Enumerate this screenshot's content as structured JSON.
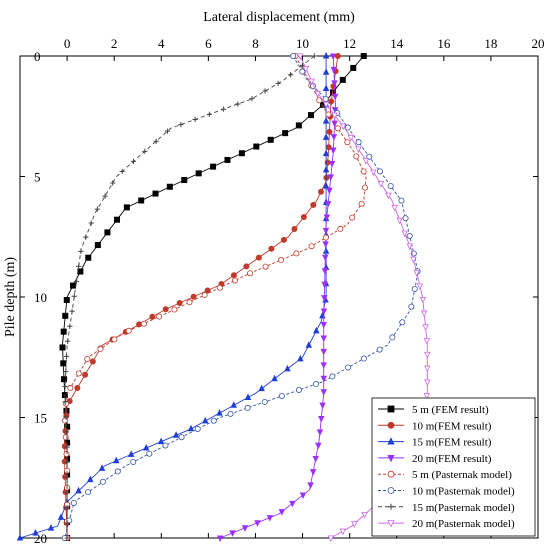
{
  "chart_data": {
    "type": "line",
    "xlabel": "Lateral displacement (mm)",
    "ylabel": "Pile depth (m)",
    "xlim": [
      -2,
      20
    ],
    "ylim": [
      0,
      20
    ],
    "x_axis_position": "top",
    "y_axis_inverted": true,
    "x_ticks": [
      0,
      2,
      4,
      6,
      8,
      10,
      12,
      14,
      16,
      18,
      20
    ],
    "y_ticks": [
      0,
      5,
      10,
      15,
      20
    ],
    "grid": false,
    "legend_position": "bottom-right",
    "series": [
      {
        "name": "5 m  (FEM result)",
        "color": "#000000",
        "marker": "square",
        "filled": true,
        "dash": "",
        "points": [
          [
            12.6,
            0
          ],
          [
            11.7,
            1
          ],
          [
            10.9,
            2
          ],
          [
            9.7,
            3
          ],
          [
            7.5,
            4
          ],
          [
            4.2,
            5.5
          ],
          [
            2.5,
            6.3
          ],
          [
            0.8,
            8.5
          ],
          [
            0,
            10
          ],
          [
            -0.2,
            12
          ],
          [
            -0.1,
            14
          ],
          [
            0,
            15
          ],
          [
            0,
            17
          ],
          [
            0,
            20
          ]
        ]
      },
      {
        "name": "10 m(FEM result)",
        "color": "#c0392b",
        "marker": "circle",
        "filled": true,
        "dash": "",
        "points": [
          [
            11.5,
            0
          ],
          [
            11.2,
            2
          ],
          [
            11.1,
            4
          ],
          [
            11,
            5.2
          ],
          [
            10.6,
            6
          ],
          [
            9.4,
            7.5
          ],
          [
            6.5,
            9.5
          ],
          [
            4.2,
            10.5
          ],
          [
            1.5,
            12
          ],
          [
            0,
            14.5
          ],
          [
            -0.1,
            16
          ],
          [
            -0.1,
            17
          ],
          [
            0,
            20
          ]
        ]
      },
      {
        "name": "15 m(FEM result)",
        "color": "#1f3fd6",
        "marker": "triangle",
        "filled": true,
        "dash": "",
        "points": [
          [
            11,
            0
          ],
          [
            11,
            3
          ],
          [
            11,
            6
          ],
          [
            11,
            9
          ],
          [
            11,
            10
          ],
          [
            10.8,
            11
          ],
          [
            10,
            12.5
          ],
          [
            8,
            14
          ],
          [
            5.2,
            15.5
          ],
          [
            1.6,
            17
          ],
          [
            0,
            18.5
          ],
          [
            -0.4,
            19.5
          ],
          [
            -2,
            20
          ]
        ]
      },
      {
        "name": "20 m(FEM result)",
        "color": "#9b30ff",
        "marker": "triangle-down",
        "filled": true,
        "dash": "",
        "points": [
          [
            11.3,
            0
          ],
          [
            11.4,
            2
          ],
          [
            11.3,
            4
          ],
          [
            11,
            7
          ],
          [
            10.9,
            11
          ],
          [
            10.9,
            14
          ],
          [
            10.7,
            16
          ],
          [
            10.3,
            18
          ],
          [
            9,
            19
          ],
          [
            6.5,
            20
          ]
        ]
      },
      {
        "name": "5 m  (Pasternak model)",
        "color": "#c0392b",
        "marker": "circle",
        "filled": false,
        "dash": "3,2",
        "points": [
          [
            9.7,
            0
          ],
          [
            10.8,
            2
          ],
          [
            12.2,
            4
          ],
          [
            12.7,
            5
          ],
          [
            12.6,
            6
          ],
          [
            11.9,
            7
          ],
          [
            10.2,
            8
          ],
          [
            7.8,
            9
          ],
          [
            4.6,
            10.5
          ],
          [
            2.4,
            11.5
          ],
          [
            0.9,
            12.5
          ],
          [
            0,
            14
          ],
          [
            -0.1,
            15
          ],
          [
            0,
            17
          ],
          [
            0,
            20
          ]
        ]
      },
      {
        "name": "10 m(Pasternak model)",
        "color": "#3355aa",
        "marker": "circle",
        "filled": false,
        "dash": "3,2",
        "points": [
          [
            9.6,
            0
          ],
          [
            10.2,
            1
          ],
          [
            11.2,
            2
          ],
          [
            12.7,
            4
          ],
          [
            14.2,
            6
          ],
          [
            14.8,
            8.5
          ],
          [
            14.9,
            9
          ],
          [
            14.6,
            10.5
          ],
          [
            13.6,
            12
          ],
          [
            10.9,
            13.5
          ],
          [
            6.5,
            15
          ],
          [
            2.5,
            17
          ],
          [
            0.3,
            18.5
          ],
          [
            -0.1,
            20
          ]
        ]
      },
      {
        "name": "15 m(Pasternak model)",
        "color": "#444444",
        "marker": "cross",
        "filled": false,
        "dash": "4,3",
        "points": [
          [
            10.5,
            0
          ],
          [
            9.2,
            1
          ],
          [
            7.8,
            1.8
          ],
          [
            4.4,
            3
          ],
          [
            2.1,
            5
          ],
          [
            1.2,
            6.5
          ],
          [
            0.6,
            8
          ],
          [
            0.3,
            10
          ],
          [
            0,
            12
          ],
          [
            -0.1,
            14
          ],
          [
            0,
            16
          ],
          [
            0,
            18
          ],
          [
            0,
            20
          ]
        ]
      },
      {
        "name": "20 m(Pasternak model)",
        "color": "#cc66ee",
        "marker": "triangle-down",
        "filled": false,
        "dash": "",
        "points": [
          [
            9.9,
            0
          ],
          [
            10.6,
            1.5
          ],
          [
            11.8,
            3
          ],
          [
            13.8,
            6
          ],
          [
            14.6,
            8
          ],
          [
            15.1,
            10
          ],
          [
            15.3,
            12
          ],
          [
            15.3,
            14
          ],
          [
            14.8,
            16
          ],
          [
            13.8,
            18
          ],
          [
            12.1,
            19.5
          ],
          [
            11.2,
            20
          ]
        ]
      }
    ]
  }
}
